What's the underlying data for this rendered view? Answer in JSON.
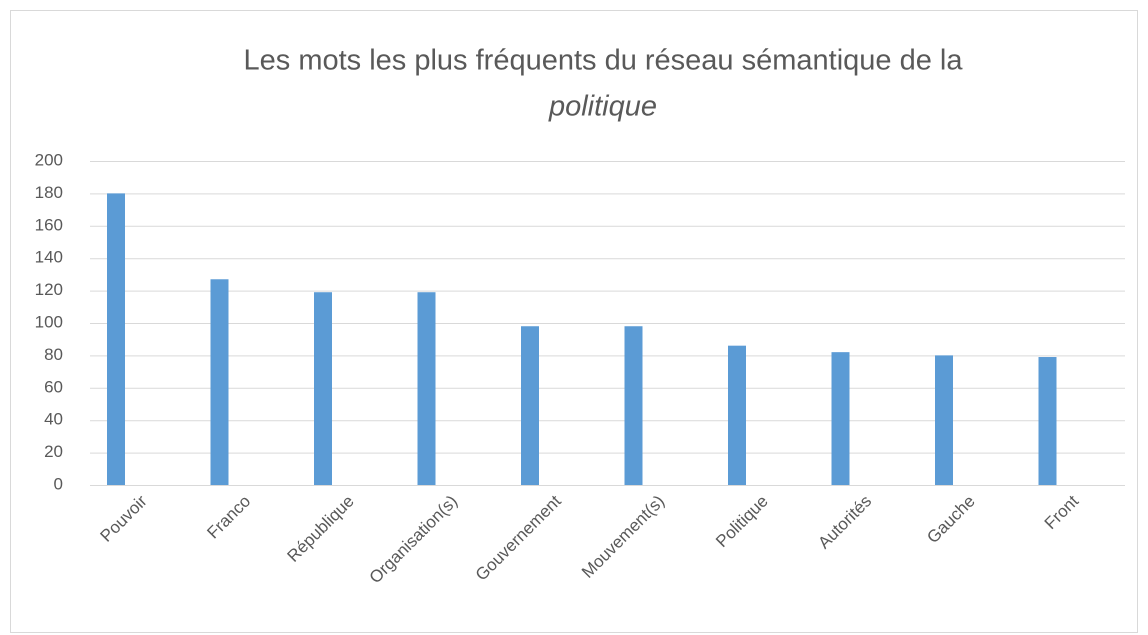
{
  "chart_data": {
    "type": "bar",
    "title": [
      "Les mots les plus fréquents du réseau sémantique de la",
      "politique"
    ],
    "categories": [
      "Pouvoir",
      "Franco",
      "République",
      "Organisation(s)",
      "Gouvernement",
      "Mouvement(s)",
      "Politique",
      "Autorités",
      "Gauche",
      "Front"
    ],
    "values": [
      180,
      127,
      119,
      119,
      98,
      98,
      86,
      82,
      80,
      79
    ],
    "color": "#5b9bd5",
    "ylim": [
      0,
      200
    ],
    "yticks": [
      0,
      20,
      40,
      60,
      80,
      100,
      120,
      140,
      160,
      180,
      200
    ],
    "grid": true
  }
}
